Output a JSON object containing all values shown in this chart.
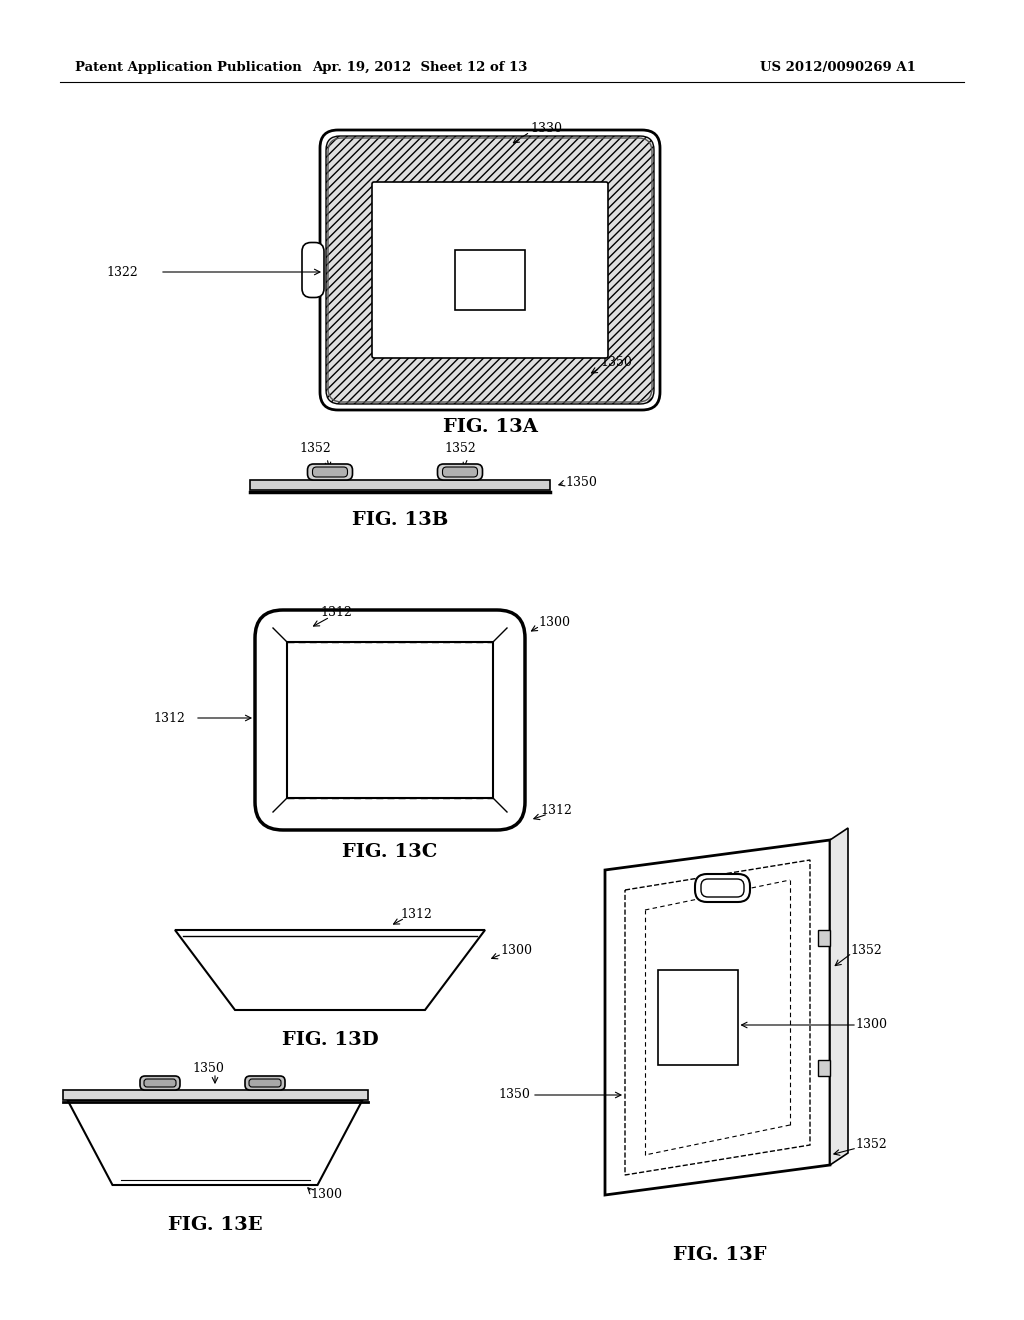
{
  "header_left": "Patent Application Publication",
  "header_mid": "Apr. 19, 2012  Sheet 12 of 13",
  "header_right": "US 2012/0090269 A1",
  "bg_color": "#ffffff",
  "line_color": "#000000",
  "figsize": [
    10.24,
    13.2
  ],
  "dpi": 100
}
